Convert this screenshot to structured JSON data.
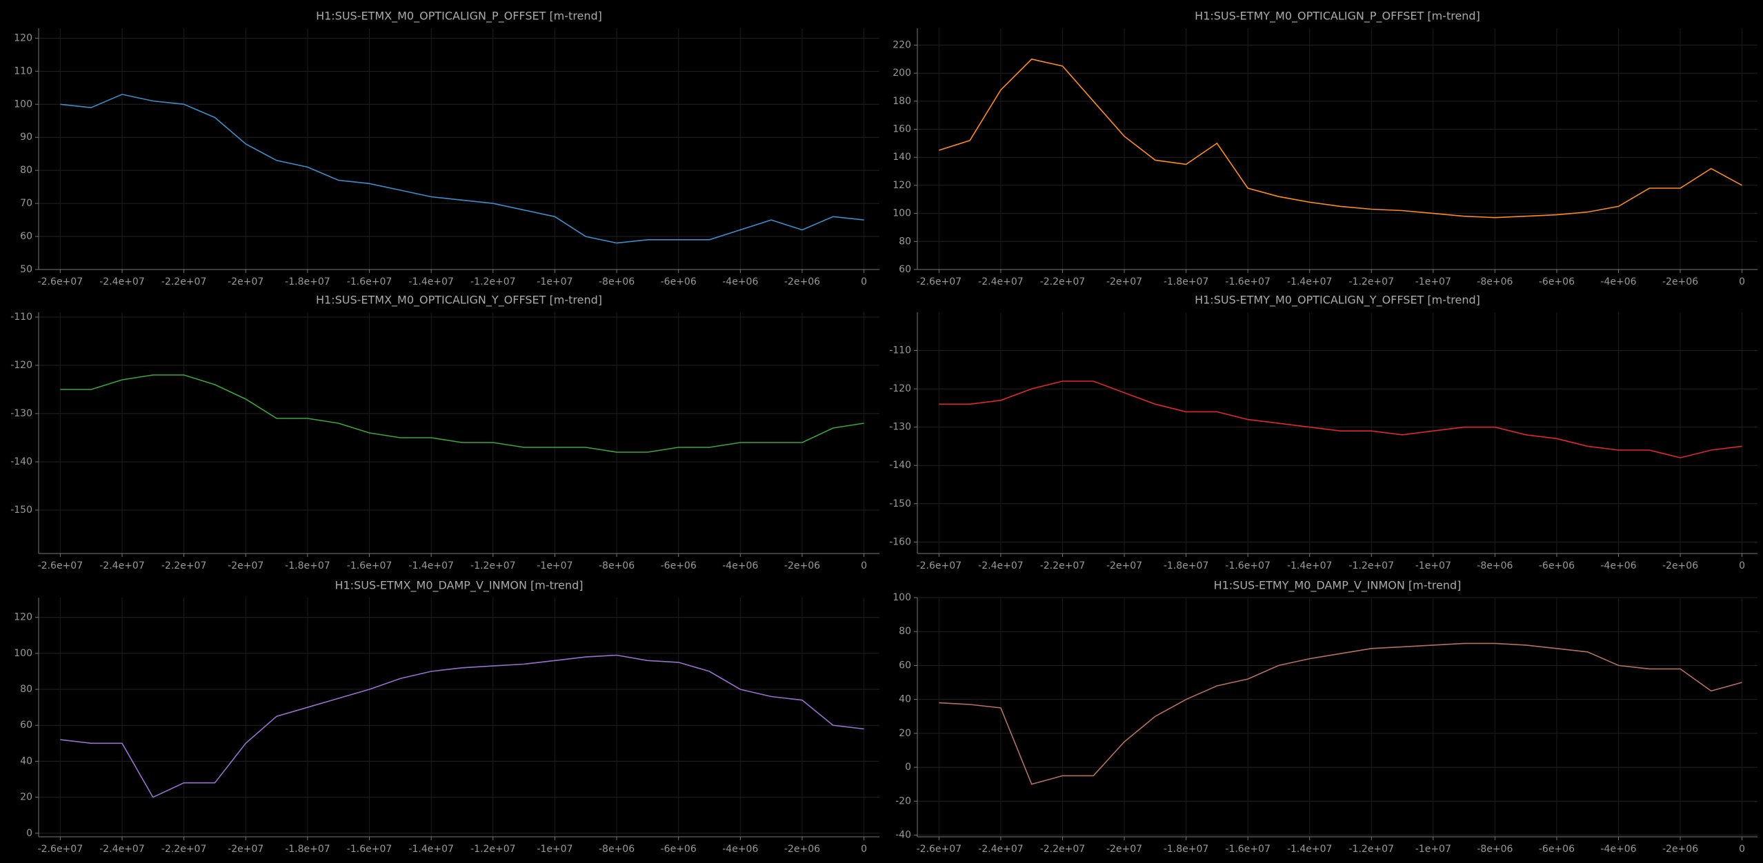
{
  "chart_data": [
    {
      "type": "line",
      "title": "H1:SUS-ETMX_M0_OPTICALIGN_P_OFFSET [m-trend]",
      "color": "#3a8fd0",
      "grid": true,
      "x": [
        -26000000,
        -25000000,
        -24000000,
        -23000000,
        -22000000,
        -21000000,
        -20000000,
        -19000000,
        -18000000,
        -17000000,
        -16000000,
        -15000000,
        -14000000,
        -13000000,
        -12000000,
        -11000000,
        -10000000,
        -9000000,
        -8000000,
        -7000000,
        -6000000,
        -5000000,
        -4000000,
        -3000000,
        -2000000,
        -1000000,
        0
      ],
      "values": [
        100,
        99,
        103,
        101,
        100,
        96,
        88,
        83,
        81,
        77,
        76,
        74,
        72,
        71,
        70,
        68,
        66,
        60,
        58,
        59,
        59,
        59,
        62,
        65,
        62,
        66,
        65
      ],
      "xlim": [
        -26700000,
        500000
      ],
      "ylim": [
        50,
        123
      ],
      "xticks": [
        {
          "value": -26000000,
          "label": "-2.6e+07"
        },
        {
          "value": -24000000,
          "label": "-2.4e+07"
        },
        {
          "value": -22000000,
          "label": "-2.2e+07"
        },
        {
          "value": -20000000,
          "label": "-2e+07"
        },
        {
          "value": -18000000,
          "label": "-1.8e+07"
        },
        {
          "value": -16000000,
          "label": "-1.6e+07"
        },
        {
          "value": -14000000,
          "label": "-1.4e+07"
        },
        {
          "value": -12000000,
          "label": "-1.2e+07"
        },
        {
          "value": -10000000,
          "label": "-1e+07"
        },
        {
          "value": -8000000,
          "label": "-8e+06"
        },
        {
          "value": -6000000,
          "label": "-6e+06"
        },
        {
          "value": -4000000,
          "label": "-4e+06"
        },
        {
          "value": -2000000,
          "label": "-2e+06"
        },
        0
      ],
      "yticks": [
        50,
        60,
        70,
        80,
        90,
        100,
        110,
        120
      ]
    },
    {
      "type": "line",
      "title": "H1:SUS-ETMY_M0_OPTICALIGN_P_OFFSET [m-trend]",
      "color": "#ff8c1a",
      "grid": true,
      "x": [
        -26000000,
        -25000000,
        -24000000,
        -23000000,
        -22000000,
        -21000000,
        -20000000,
        -19000000,
        -18000000,
        -17000000,
        -16000000,
        -15000000,
        -14000000,
        -13000000,
        -12000000,
        -11000000,
        -10000000,
        -9000000,
        -8000000,
        -7000000,
        -6000000,
        -5000000,
        -4000000,
        -3000000,
        -2000000,
        -1000000,
        0
      ],
      "values": [
        145,
        152,
        188,
        210,
        205,
        180,
        155,
        138,
        135,
        150,
        118,
        112,
        108,
        105,
        103,
        102,
        100,
        98,
        97,
        98,
        99,
        101,
        105,
        118,
        118,
        132,
        120
      ],
      "xlim": [
        -26700000,
        500000
      ],
      "ylim": [
        60,
        232
      ],
      "xticks": [
        {
          "value": -26000000,
          "label": "-2.6e+07"
        },
        {
          "value": -24000000,
          "label": "-2.4e+07"
        },
        {
          "value": -22000000,
          "label": "-2.2e+07"
        },
        {
          "value": -20000000,
          "label": "-2e+07"
        },
        {
          "value": -18000000,
          "label": "-1.8e+07"
        },
        {
          "value": -16000000,
          "label": "-1.6e+07"
        },
        {
          "value": -14000000,
          "label": "-1.4e+07"
        },
        {
          "value": -12000000,
          "label": "-1.2e+07"
        },
        {
          "value": -10000000,
          "label": "-1e+07"
        },
        {
          "value": -8000000,
          "label": "-8e+06"
        },
        {
          "value": -6000000,
          "label": "-6e+06"
        },
        {
          "value": -4000000,
          "label": "-4e+06"
        },
        {
          "value": -2000000,
          "label": "-2e+06"
        },
        0
      ],
      "yticks": [
        60,
        80,
        100,
        120,
        140,
        160,
        180,
        200,
        220
      ]
    },
    {
      "type": "line",
      "title": "H1:SUS-ETMX_M0_OPTICALIGN_Y_OFFSET [m-trend]",
      "color": "#3aa83a",
      "grid": true,
      "x": [
        -26000000,
        -25000000,
        -24000000,
        -23000000,
        -22000000,
        -21000000,
        -20000000,
        -19000000,
        -18000000,
        -17000000,
        -16000000,
        -15000000,
        -14000000,
        -13000000,
        -12000000,
        -11000000,
        -10000000,
        -9000000,
        -8000000,
        -7000000,
        -6000000,
        -5000000,
        -4000000,
        -3000000,
        -2000000,
        -1000000,
        0
      ],
      "values": [
        -125,
        -125,
        -123,
        -122,
        -122,
        -124,
        -127,
        -131,
        -131,
        -132,
        -134,
        -135,
        -135,
        -136,
        -136,
        -137,
        -137,
        -137,
        -138,
        -138,
        -137,
        -137,
        -136,
        -136,
        -136,
        -133,
        -132
      ],
      "xlim": [
        -26700000,
        500000
      ],
      "ylim": [
        -159,
        -109
      ],
      "xticks": [
        {
          "value": -26000000,
          "label": "-2.6e+07"
        },
        {
          "value": -24000000,
          "label": "-2.4e+07"
        },
        {
          "value": -22000000,
          "label": "-2.2e+07"
        },
        {
          "value": -20000000,
          "label": "-2e+07"
        },
        {
          "value": -18000000,
          "label": "-1.8e+07"
        },
        {
          "value": -16000000,
          "label": "-1.6e+07"
        },
        {
          "value": -14000000,
          "label": "-1.4e+07"
        },
        {
          "value": -12000000,
          "label": "-1.2e+07"
        },
        {
          "value": -10000000,
          "label": "-1e+07"
        },
        {
          "value": -8000000,
          "label": "-8e+06"
        },
        {
          "value": -6000000,
          "label": "-6e+06"
        },
        {
          "value": -4000000,
          "label": "-4e+06"
        },
        {
          "value": -2000000,
          "label": "-2e+06"
        },
        0
      ],
      "yticks": [
        -150,
        -140,
        -130,
        -120,
        -110
      ]
    },
    {
      "type": "line",
      "title": "H1:SUS-ETMY_M0_OPTICALIGN_Y_OFFSET [m-trend]",
      "color": "#e0282e",
      "grid": true,
      "x": [
        -26000000,
        -25000000,
        -24000000,
        -23000000,
        -22000000,
        -21000000,
        -20000000,
        -19000000,
        -18000000,
        -17000000,
        -16000000,
        -15000000,
        -14000000,
        -13000000,
        -12000000,
        -11000000,
        -10000000,
        -9000000,
        -8000000,
        -7000000,
        -6000000,
        -5000000,
        -4000000,
        -3000000,
        -2000000,
        -1000000,
        0
      ],
      "values": [
        -124,
        -124,
        -123,
        -120,
        -118,
        -118,
        -121,
        -124,
        -126,
        -126,
        -128,
        -129,
        -130,
        -131,
        -131,
        -132,
        -131,
        -130,
        -130,
        -132,
        -133,
        -135,
        -136,
        -136,
        -138,
        -136,
        -135
      ],
      "xlim": [
        -26700000,
        500000
      ],
      "ylim": [
        -163,
        -100
      ],
      "xticks": [
        {
          "value": -26000000,
          "label": "-2.6e+07"
        },
        {
          "value": -24000000,
          "label": "-2.4e+07"
        },
        {
          "value": -22000000,
          "label": "-2.2e+07"
        },
        {
          "value": -20000000,
          "label": "-2e+07"
        },
        {
          "value": -18000000,
          "label": "-1.8e+07"
        },
        {
          "value": -16000000,
          "label": "-1.6e+07"
        },
        {
          "value": -14000000,
          "label": "-1.4e+07"
        },
        {
          "value": -12000000,
          "label": "-1.2e+07"
        },
        {
          "value": -10000000,
          "label": "-1e+07"
        },
        {
          "value": -8000000,
          "label": "-8e+06"
        },
        {
          "value": -6000000,
          "label": "-6e+06"
        },
        {
          "value": -4000000,
          "label": "-4e+06"
        },
        {
          "value": -2000000,
          "label": "-2e+06"
        },
        0
      ],
      "yticks": [
        -160,
        -150,
        -140,
        -130,
        -120,
        -110
      ]
    },
    {
      "type": "line",
      "title": "H1:SUS-ETMX_M0_DAMP_V_INMON [m-trend]",
      "color": "#9a6fd0",
      "grid": true,
      "x": [
        -26000000,
        -25000000,
        -24000000,
        -23000000,
        -22000000,
        -21000000,
        -20000000,
        -19000000,
        -18000000,
        -17000000,
        -16000000,
        -15000000,
        -14000000,
        -13000000,
        -12000000,
        -11000000,
        -10000000,
        -9000000,
        -8000000,
        -7000000,
        -6000000,
        -5000000,
        -4000000,
        -3000000,
        -2000000,
        -1000000,
        0
      ],
      "values": [
        52,
        50,
        50,
        20,
        28,
        28,
        50,
        65,
        70,
        75,
        80,
        86,
        90,
        92,
        93,
        94,
        96,
        98,
        99,
        96,
        95,
        90,
        80,
        76,
        74,
        60,
        58
      ],
      "xlim": [
        -26700000,
        500000
      ],
      "ylim": [
        -2,
        131
      ],
      "xticks": [
        {
          "value": -26000000,
          "label": "-2.6e+07"
        },
        {
          "value": -24000000,
          "label": "-2.4e+07"
        },
        {
          "value": -22000000,
          "label": "-2.2e+07"
        },
        {
          "value": -20000000,
          "label": "-2e+07"
        },
        {
          "value": -18000000,
          "label": "-1.8e+07"
        },
        {
          "value": -16000000,
          "label": "-1.6e+07"
        },
        {
          "value": -14000000,
          "label": "-1.4e+07"
        },
        {
          "value": -12000000,
          "label": "-1.2e+07"
        },
        {
          "value": -10000000,
          "label": "-1e+07"
        },
        {
          "value": -8000000,
          "label": "-8e+06"
        },
        {
          "value": -6000000,
          "label": "-6e+06"
        },
        {
          "value": -4000000,
          "label": "-4e+06"
        },
        {
          "value": -2000000,
          "label": "-2e+06"
        },
        0
      ],
      "yticks": [
        0,
        20,
        40,
        60,
        80,
        100,
        120
      ]
    },
    {
      "type": "line",
      "title": "H1:SUS-ETMY_M0_DAMP_V_INMON [m-trend]",
      "color": "#b87060",
      "grid": true,
      "x": [
        -26000000,
        -25000000,
        -24000000,
        -23000000,
        -22000000,
        -21000000,
        -20000000,
        -19000000,
        -18000000,
        -17000000,
        -16000000,
        -15000000,
        -14000000,
        -13000000,
        -12000000,
        -11000000,
        -10000000,
        -9000000,
        -8000000,
        -7000000,
        -6000000,
        -5000000,
        -4000000,
        -3000000,
        -2000000,
        -1000000,
        0
      ],
      "values": [
        38,
        37,
        35,
        -10,
        -5,
        -5,
        15,
        30,
        40,
        48,
        52,
        60,
        64,
        67,
        70,
        71,
        72,
        73,
        73,
        72,
        70,
        68,
        60,
        58,
        58,
        45,
        50
      ],
      "xlim": [
        -26700000,
        500000
      ],
      "ylim": [
        -41,
        100
      ],
      "xticks": [
        {
          "value": -26000000,
          "label": "-2.6e+07"
        },
        {
          "value": -24000000,
          "label": "-2.4e+07"
        },
        {
          "value": -22000000,
          "label": "-2.2e+07"
        },
        {
          "value": -20000000,
          "label": "-2e+07"
        },
        {
          "value": -18000000,
          "label": "-1.8e+07"
        },
        {
          "value": -16000000,
          "label": "-1.6e+07"
        },
        {
          "value": -14000000,
          "label": "-1.4e+07"
        },
        {
          "value": -12000000,
          "label": "-1.2e+07"
        },
        {
          "value": -10000000,
          "label": "-1e+07"
        },
        {
          "value": -8000000,
          "label": "-8e+06"
        },
        {
          "value": -6000000,
          "label": "-6e+06"
        },
        {
          "value": -4000000,
          "label": "-4e+06"
        },
        {
          "value": -2000000,
          "label": "-2e+06"
        },
        0
      ],
      "yticks": [
        -40,
        -20,
        0,
        20,
        40,
        60,
        80,
        100
      ]
    }
  ]
}
